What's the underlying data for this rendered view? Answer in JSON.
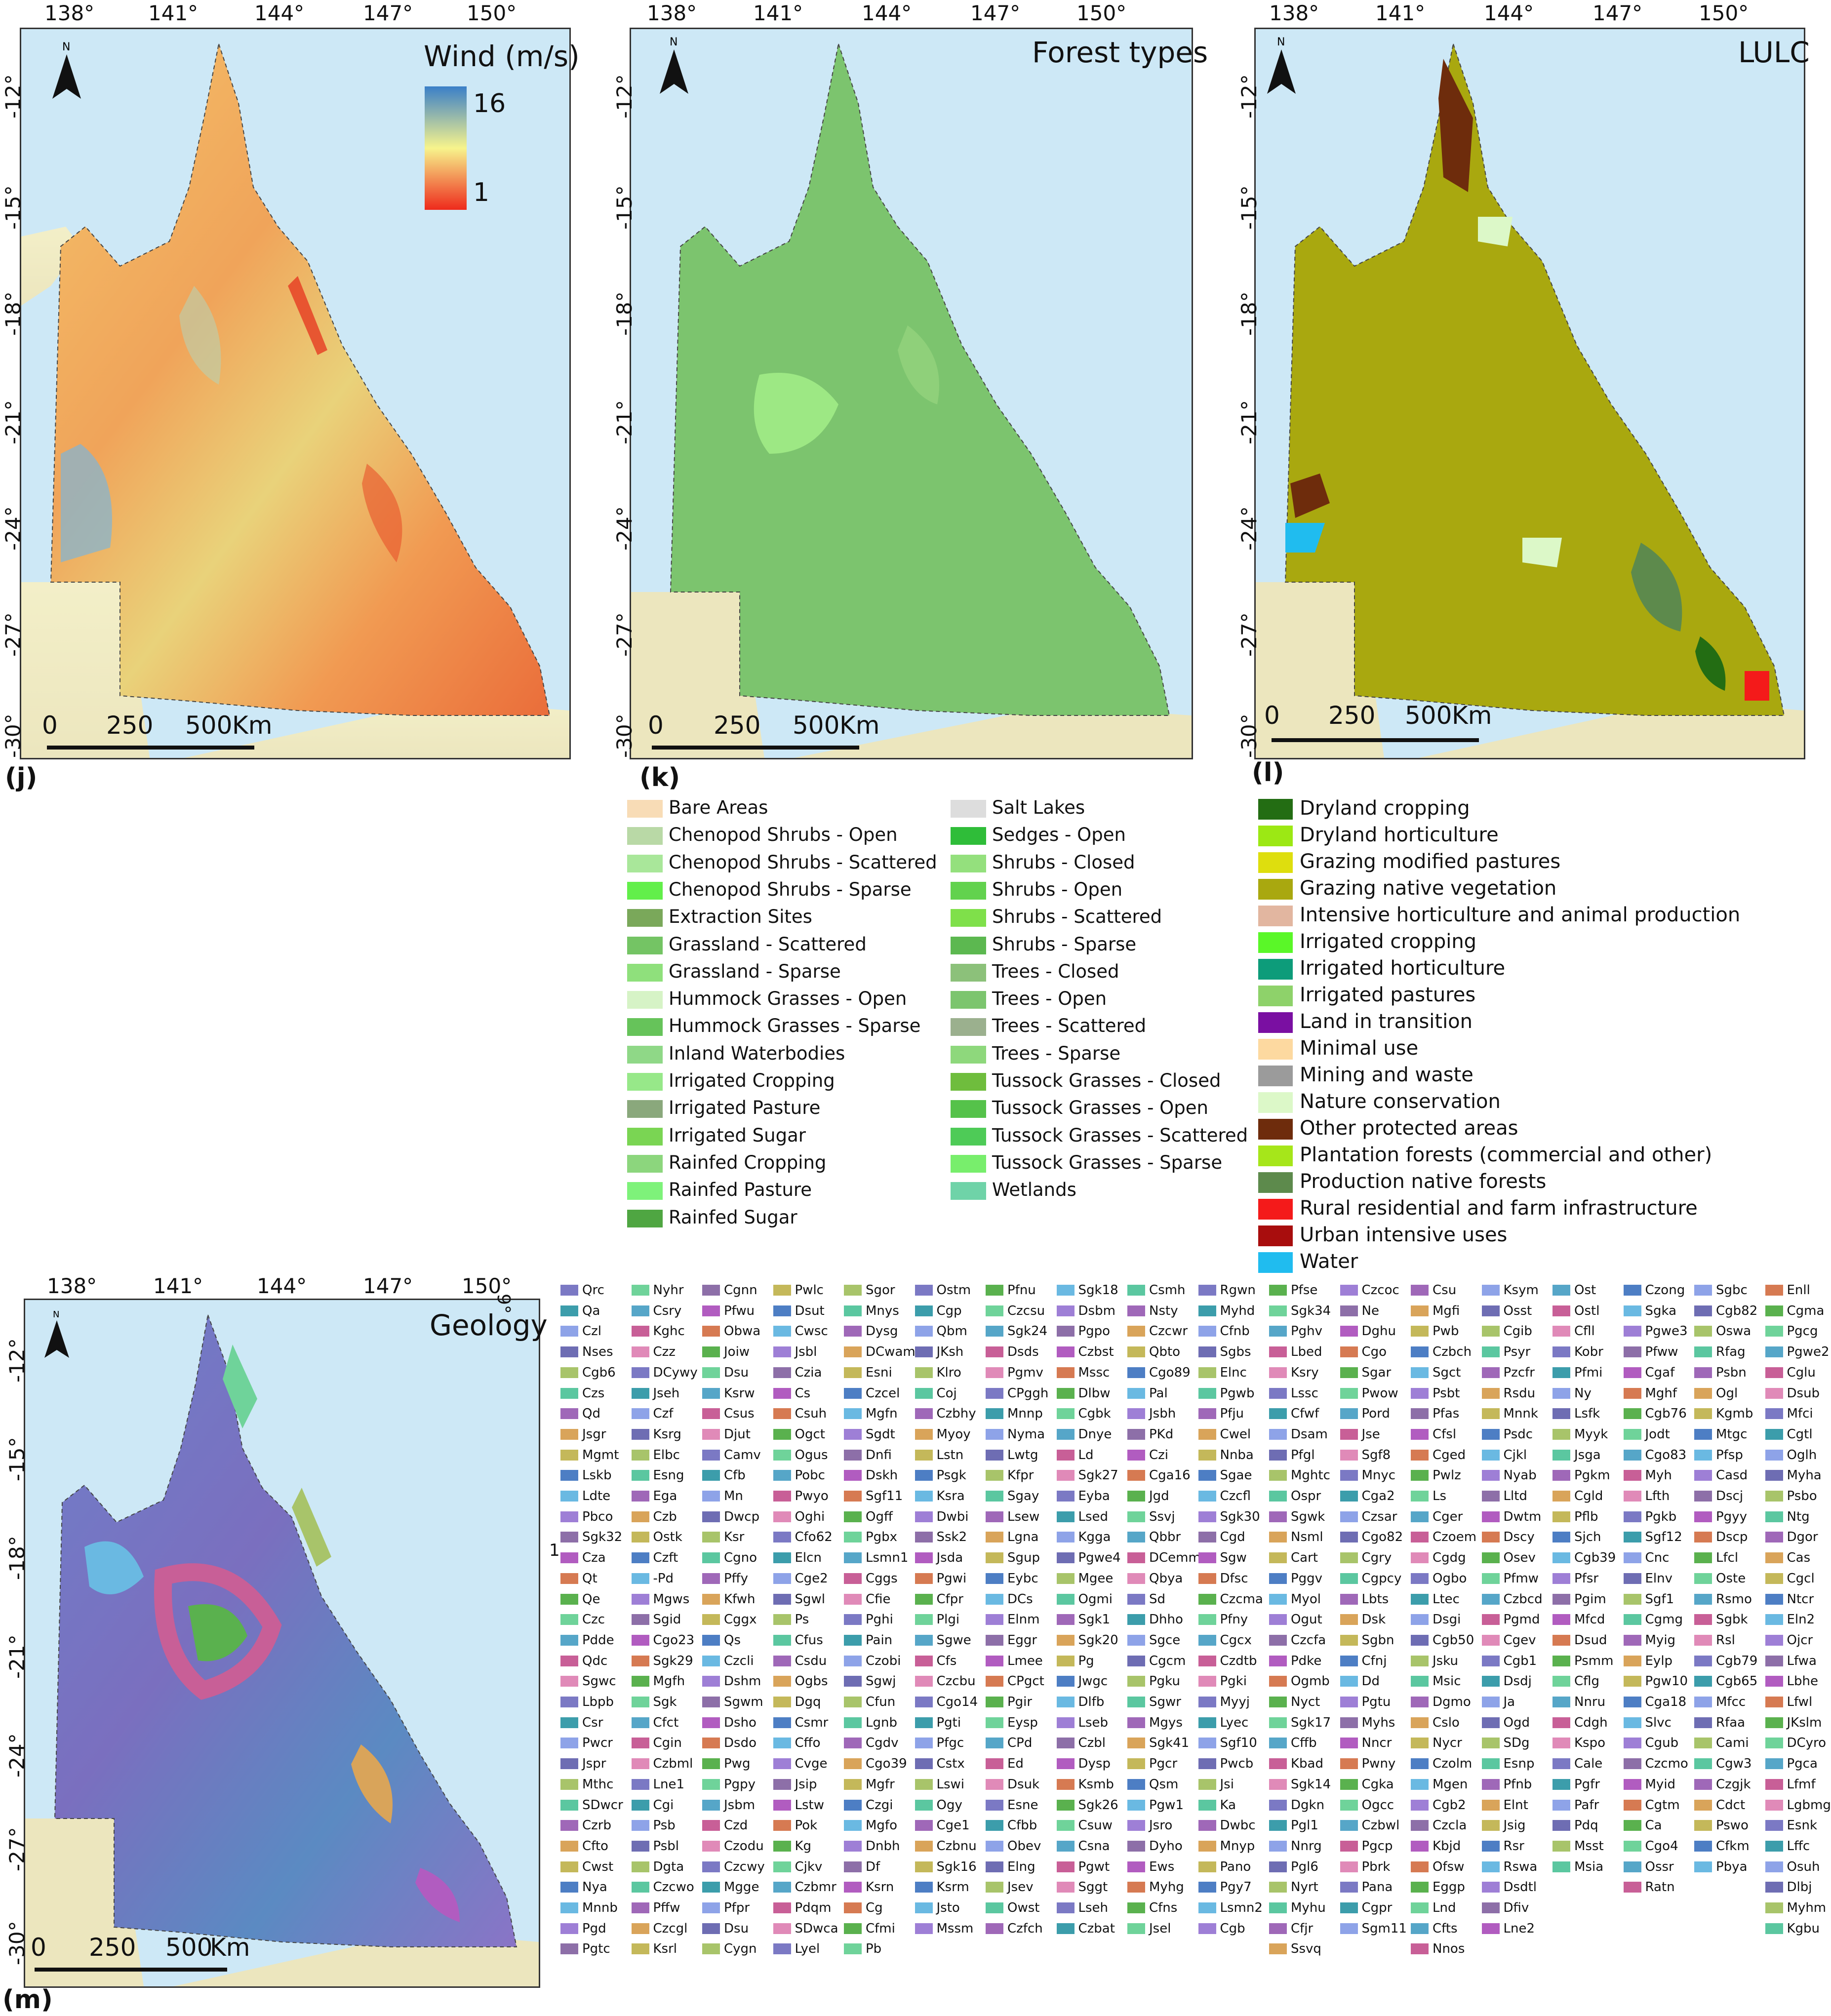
{
  "panels": {
    "wind": {
      "letter": "(j)",
      "title": "Wind (m/s)",
      "colorbar_max": "16",
      "colorbar_min": "1",
      "colorbar_colors": [
        "#3a7fc8",
        "#f7f48c",
        "#ee2a1c"
      ]
    },
    "forest": {
      "letter": "(k)",
      "title": "Forest types"
    },
    "lulc": {
      "letter": "(l)",
      "title": "LULC"
    },
    "geology": {
      "letter": "(m)",
      "title": "Geology"
    }
  },
  "axes": {
    "lon_ticks": [
      "138°",
      "141°",
      "144°",
      "147°",
      "150°"
    ],
    "lat_ticks": [
      "-12°",
      "-15°",
      "-18°",
      "-21°",
      "-24°",
      "-27°",
      "-30°"
    ],
    "geology_extra_tick": "9°",
    "geology_side_mark": "1"
  },
  "scale_bar": {
    "labels": [
      "0",
      "250",
      "500"
    ],
    "unit": "Km"
  },
  "north_label": "N",
  "forest_legend": [
    {
      "label": "Bare Areas",
      "color": "#f8dcb6"
    },
    {
      "label": "Chenopod Shrubs - Open",
      "color": "#b9d9a6"
    },
    {
      "label": "Chenopod Shrubs - Scattered",
      "color": "#a9e79a"
    },
    {
      "label": "Chenopod Shrubs - Sparse",
      "color": "#62ef4a"
    },
    {
      "label": "Extraction Sites",
      "color": "#7aa85a"
    },
    {
      "label": "Grassland - Scattered",
      "color": "#74c464"
    },
    {
      "label": "Grassland - Sparse",
      "color": "#8fe07c"
    },
    {
      "label": "Hummock Grasses - Open",
      "color": "#d6f3c6"
    },
    {
      "label": "Hummock Grasses - Sparse",
      "color": "#66c35a"
    },
    {
      "label": "Inland Waterbodies",
      "color": "#8fd887"
    },
    {
      "label": "Irrigated Cropping",
      "color": "#97e889"
    },
    {
      "label": "Irrigated Pasture",
      "color": "#8aa87c"
    },
    {
      "label": "Irrigated Sugar",
      "color": "#7ad553"
    },
    {
      "label": "Rainfed Cropping",
      "color": "#8cd67d"
    },
    {
      "label": "Rainfed Pasture",
      "color": "#7ef27a"
    },
    {
      "label": "Rainfed Sugar",
      "color": "#4fa642"
    },
    {
      "label": "Salt Lakes",
      "color": "#dddddd"
    },
    {
      "label": "Sedges - Open",
      "color": "#2fbd39"
    },
    {
      "label": "Shrubs - Closed",
      "color": "#94e07d"
    },
    {
      "label": "Shrubs - Open",
      "color": "#62d24e"
    },
    {
      "label": "Shrubs - Scattered",
      "color": "#7fe04a"
    },
    {
      "label": "Shrubs - Sparse",
      "color": "#5cb850"
    },
    {
      "label": "Trees - Closed",
      "color": "#8cc17a"
    },
    {
      "label": "Trees - Open",
      "color": "#7cc56e"
    },
    {
      "label": "Trees - Scattered",
      "color": "#9bb08e"
    },
    {
      "label": "Trees - Sparse",
      "color": "#8ed87c"
    },
    {
      "label": "Tussock Grasses - Closed",
      "color": "#6fbd3d"
    },
    {
      "label": "Tussock Grasses - Open",
      "color": "#55c24a"
    },
    {
      "label": "Tussock Grasses - Scattered",
      "color": "#4ecb57"
    },
    {
      "label": "Tussock Grasses - Sparse",
      "color": "#78ee6c"
    },
    {
      "label": "Wetlands",
      "color": "#6fd3a8"
    }
  ],
  "lulc_legend": [
    {
      "label": "Dryland cropping",
      "color": "#236d13"
    },
    {
      "label": "Dryland horticulture",
      "color": "#9ce814"
    },
    {
      "label": "Grazing modified pastures",
      "color": "#dede0e"
    },
    {
      "label": "Grazing native vegetation",
      "color": "#a9a80f"
    },
    {
      "label": "Intensive horticulture and animal production",
      "color": "#e2b6a0"
    },
    {
      "label": "Irrigated cropping",
      "color": "#5af728"
    },
    {
      "label": "Irrigated horticulture",
      "color": "#0d9c7a"
    },
    {
      "label": "Irrigated pastures",
      "color": "#8ed26a"
    },
    {
      "label": "Land in transition",
      "color": "#7a0fa2"
    },
    {
      "label": "Minimal use",
      "color": "#fdd9a0"
    },
    {
      "label": "Mining and waste",
      "color": "#9b9b9b"
    },
    {
      "label": "Nature conservation",
      "color": "#dcf8c8"
    },
    {
      "label": "Other protected areas",
      "color": "#6e2c0c"
    },
    {
      "label": "Plantation forests (commercial and other)",
      "color": "#a6e61a"
    },
    {
      "label": "Production native forests",
      "color": "#5d8a4c"
    },
    {
      "label": "Rural residential and farm infrastructure",
      "color": "#f41a1a"
    },
    {
      "label": "Urban intensive uses",
      "color": "#a80d0d"
    },
    {
      "label": "Water",
      "color": "#20bcef"
    }
  ],
  "geology_columns": [
    [
      "Qrc",
      "Qa",
      "Czl",
      "Nses",
      "Cgb6",
      "Czs",
      "Qd",
      "Jsgr",
      "Mgmt",
      "Lskb",
      "Ldte",
      "Pbco",
      "Sgk32",
      "Cza",
      "Qt",
      "Qe",
      "Czc",
      "Pdde",
      "Qdc",
      "Sgwc",
      "Lbpb",
      "Csr",
      "Pwcr",
      "Jspr",
      "Mthc",
      "SDwcr",
      "Czrb",
      "Cfto",
      "Cwst",
      "Nya",
      "Mnnb",
      "Pgd",
      "Pgtc"
    ],
    [
      "Nyhr",
      "Csry",
      "Kghc",
      "Czz",
      "DCywy",
      "Jseh",
      "Czf",
      "Ksrg",
      "Elbc",
      "Esng",
      "Ega",
      "Czb",
      "Ostk",
      "Czft",
      "-Pd",
      "Mgws",
      "Sgid",
      "Cgo23",
      "Sgk29",
      "Mgfh",
      "Sgk",
      "Cfct",
      "Cgin",
      "Czbml",
      "Lne1",
      "Cgi",
      "Psb",
      "Psbl",
      "Dgta",
      "Czcwo",
      "Pffw",
      "Czcgl",
      "Ksrl"
    ],
    [
      "Cgnn",
      "Pfwu",
      "Obwa",
      "Joiw",
      "Dsu",
      "Ksrw",
      "Csus",
      "Djut",
      "Camv",
      "Cfb",
      "Mn",
      "Dwcp",
      "Ksr",
      "Cgno",
      "Pffy",
      "Kfwh",
      "Cggx",
      "Qs",
      "Czcli",
      "Dshm",
      "Sgwm",
      "Dsho",
      "Dsdo",
      "Pwg",
      "Pgpy",
      "Jsbm",
      "Czd",
      "Czodu",
      "Czcwy",
      "Mgge",
      "Pfpr",
      "Dsu",
      "Cygn"
    ],
    [
      "Pwlc",
      "Dsut",
      "Cwsc",
      "Jsbl",
      "Czia",
      "Cs",
      "Csuh",
      "Ogct",
      "Ogus",
      "Pobc",
      "Pwyo",
      "Oghi",
      "Cfo62",
      "Elcn",
      "Cge2",
      "Sgwl",
      "Ps",
      "Cfus",
      "Csdu",
      "Ogbs",
      "Dgq",
      "Csmr",
      "Cffo",
      "Cvge",
      "Jsip",
      "Lstw",
      "Pok",
      "Kg",
      "Cjkv",
      "Czbmr",
      "Pdqm",
      "SDwca",
      "Lyel"
    ],
    [
      "Sgor",
      "Mnys",
      "Dysg",
      "DCwam",
      "Esni",
      "Czcel",
      "Mgfn",
      "Sgdt",
      "Dnfi",
      "Dskh",
      "Sgf11",
      "Ogff",
      "Pgbx",
      "Lsmn1",
      "Cggs",
      "Cfie",
      "Pghi",
      "Pain",
      "Czobi",
      "Sgwj",
      "Cfun",
      "Lgnb",
      "Cgdv",
      "Cgo39",
      "Mgfr",
      "Czgi",
      "Mgfo",
      "Dnbh",
      "Df",
      "Ksrn",
      "Cg",
      "Cfmi",
      "Pb"
    ],
    [
      "Ostm",
      "Cgp",
      "Qbm",
      "JKsh",
      "Klro",
      "Coj",
      "Czbhy",
      "Myoy",
      "Lstn",
      "Psgk",
      "Ksra",
      "Dwbi",
      "Ssk2",
      "Jsda",
      "Pgwi",
      "Cfpr",
      "Plgi",
      "Sgwe",
      "Cfs",
      "Czcbu",
      "Cgo14",
      "Pgti",
      "Pfgc",
      "Cstx",
      "Lswi",
      "Ogy",
      "Cge1",
      "Czbnu",
      "Sgk16",
      "Ksrm",
      "Jsto",
      "Mssm"
    ],
    [
      "Pfnu",
      "Czcsu",
      "Sgk24",
      "Dsds",
      "Pgmv",
      "CPggh",
      "Mnnp",
      "Nyma",
      "Lwtg",
      "Kfpr",
      "Sgay",
      "Lsew",
      "Lgna",
      "Sgup",
      "Eybc",
      "DCs",
      "Elnm",
      "Eggr",
      "Lmee",
      "CPgct",
      "Pgir",
      "Eysp",
      "CPd",
      "Ed",
      "Dsuk",
      "Esne",
      "Cfbb",
      "Obev",
      "Elng",
      "Jsev",
      "Owst",
      "Czfch"
    ],
    [
      "Sgk18",
      "Dsbm",
      "Pgpo",
      "Czbst",
      "Mssc",
      "Dlbw",
      "Cgbk",
      "Dnye",
      "Ld",
      "Sgk27",
      "Eyba",
      "Lsed",
      "Kgga",
      "Pgwe4",
      "Mgee",
      "Ogmi",
      "Sgk1",
      "Sgk20",
      "Pg",
      "Jwgc",
      "Dlfb",
      "Lseb",
      "Czbl",
      "Dysp",
      "Ksmb",
      "Sgk26",
      "Csuw",
      "Csna",
      "Pgwt",
      "Sggt",
      "Lseh",
      "Czbat"
    ],
    [
      "Csmh",
      "Nsty",
      "Czcwr",
      "Qbto",
      "Cgo89",
      "Pal",
      "Jsbh",
      "PKd",
      "Czi",
      "Cga16",
      "Jgd",
      "Ssvj",
      "Qbbr",
      "DCemm",
      "Qbya",
      "Sd",
      "Dhho",
      "Sgce",
      "Cgcm",
      "Pgku",
      "Sgwr",
      "Mgys",
      "Sgk41",
      "Pgcr",
      "Qsm",
      "Pgw1",
      "Jsro",
      "Dyho",
      "Ews",
      "Myhg",
      "Cfns",
      "Jsel"
    ],
    [
      "Rgwn",
      "Myhd",
      "Cfnb",
      "Sgbs",
      "Elnc",
      "Pgwb",
      "Pfju",
      "Cwel",
      "Nnba",
      "Sgae",
      "Czcfl",
      "Sgk30",
      "Cgd",
      "Sgw",
      "Dfsc",
      "Czcma",
      "Pfny",
      "Cgcx",
      "Czdtb",
      "Pgki",
      "Myyj",
      "Lyec",
      "Sgf10",
      "Pwcb",
      "Jsi",
      "Ka",
      "Dwbc",
      "Mnyp",
      "Pano",
      "Pgy7",
      "Lsmn2",
      "Cgb"
    ],
    [
      "Pfse",
      "Sgk34",
      "Pghv",
      "Lbed",
      "Ksry",
      "Lssc",
      "Cfwf",
      "Dsam",
      "Pfgl",
      "Mghtc",
      "Ospr",
      "Sgwk",
      "Nsml",
      "Cart",
      "Pggv",
      "Myol",
      "Ogut",
      "Czcfa",
      "Pdke",
      "Ogmb",
      "Nyct",
      "Sgk17",
      "Cffb",
      "Kbad",
      "Sgk14",
      "Dgkn",
      "Pgl1",
      "Nnrg",
      "Pgl6",
      "Nyrt",
      "Myhu",
      "Cfjr",
      "Ssvq"
    ],
    [
      "Czcoc",
      "Ne",
      "Dghu",
      "Cgo",
      "Sgar",
      "Pwow",
      "Pord",
      "Jse",
      "Sgf8",
      "Mnyc",
      "Cga2",
      "Czsar",
      "Cgo82",
      "Cgry",
      "Cgpcy",
      "Lbts",
      "Dsk",
      "Sgbn",
      "Cfnj",
      "Dd",
      "Pgtu",
      "Myhs",
      "Nncr",
      "Pwny",
      "Cgka",
      "Ogcc",
      "Czbwl",
      "Pgcp",
      "Pbrk",
      "Pana",
      "Cgpr",
      "Sgm11"
    ],
    [
      "Csu",
      "Mgfi",
      "Pwb",
      "Czbch",
      "Sgct",
      "Psbt",
      "Pfas",
      "Cfsl",
      "Cged",
      "Pwlz",
      "Ls",
      "Cger",
      "Czoem",
      "Cgdg",
      "Ogbo",
      "Ltec",
      "Dsgi",
      "Cgb50",
      "Jsku",
      "Msic",
      "Dgmo",
      "Cslo",
      "Nycr",
      "Czolm",
      "Mgen",
      "Cgb2",
      "Czcla",
      "Kbjd",
      "Ofsw",
      "Eggp",
      "Lnd",
      "Cfts",
      "Nnos"
    ],
    [
      "Ksym",
      "Osst",
      "Cgib",
      "Psyr",
      "Pzcfr",
      "Rsdu",
      "Mnnk",
      "Psdc",
      "Cjkl",
      "Nyab",
      "Lltd",
      "Dwtm",
      "Dscy",
      "Osev",
      "Pfmw",
      "Czbcd",
      "Pgmd",
      "Cgev",
      "Cgb1",
      "Dsdj",
      "Ja",
      "Ogd",
      "SDg",
      "Esnp",
      "Pfnb",
      "Elnt",
      "Jsig",
      "Rsr",
      "Rswa",
      "Dsdtl",
      "Dfiv",
      "Lne2"
    ],
    [
      "Ost",
      "Ostl",
      "Cfll",
      "Kobr",
      "Pfmi",
      "Ny",
      "Lsfk",
      "Myyk",
      "Jsga",
      "Pgkm",
      "Cgld",
      "Pflb",
      "Sjch",
      "Cgb39",
      "Pfsr",
      "Pgim",
      "Mfcd",
      "Dsud",
      "Psmm",
      "Cflg",
      "Nnru",
      "Cdgh",
      "Kspo",
      "Cale",
      "Pgfr",
      "Pafr",
      "Pdq",
      "Msst",
      "Msia"
    ],
    [
      "Czong",
      "Sgka",
      "Pgwe3",
      "Pfww",
      "Cgaf",
      "Mghf",
      "Cgb76",
      "Jodt",
      "Cgo83",
      "Myh",
      "Lfth",
      "Pgkb",
      "Sgf12",
      "Cnc",
      "Elnv",
      "Sgf1",
      "Cgmg",
      "Myig",
      "Eylp",
      "Pgw10",
      "Cga18",
      "Slvc",
      "Cgub",
      "Czcmo",
      "Myid",
      "Cgtm",
      "Ca",
      "Cgo4",
      "Ossr",
      "Ratn"
    ],
    [
      "Sgbc",
      "Cgb82",
      "Oswa",
      "Rfag",
      "Psbn",
      "Ogl",
      "Kgmb",
      "Mtgc",
      "Pfsp",
      "Casd",
      "Dscj",
      "Pgyy",
      "Dscp",
      "Lfcl",
      "Oste",
      "Rsmo",
      "Sgbk",
      "Rsl",
      "Cgb79",
      "Cgb65",
      "Mfcc",
      "Rfaa",
      "Cami",
      "Cgw3",
      "Czgjk",
      "Cdct",
      "Pswo",
      "Cfkm",
      "Pbya"
    ],
    [
      "Enll",
      "Cgma",
      "Pgcg",
      "Pgwe2",
      "Cglu",
      "Dsub",
      "Mfci",
      "Cgtl",
      "Oglh",
      "Myha",
      "Psbo",
      "Ntg",
      "Dgor",
      "Cas",
      "Cgcl",
      "Ntcr",
      "Eln2",
      "Ojcr",
      "Lfwa",
      "Lbhe",
      "Lfwl",
      "JKslm",
      "DCyro",
      "Pgca",
      "Lfmf",
      "Lgbmg",
      "Esnk",
      "Lffc",
      "Osuh",
      "Dlbj",
      "Myhm",
      "Kgbu"
    ]
  ],
  "geology_palette": [
    "#7b79c4",
    "#6e6db3",
    "#9f68b8",
    "#4d7ec4",
    "#8d6fa8",
    "#5ab14e",
    "#c85f97",
    "#3c9dab",
    "#a8c46a",
    "#d9a45a",
    "#6ab9e2",
    "#b15cc0",
    "#6fd39a",
    "#e08ab8",
    "#8ea3e8",
    "#5bc7a0",
    "#c4b85a",
    "#9e7fd6",
    "#d67a52",
    "#56a6c8"
  ]
}
